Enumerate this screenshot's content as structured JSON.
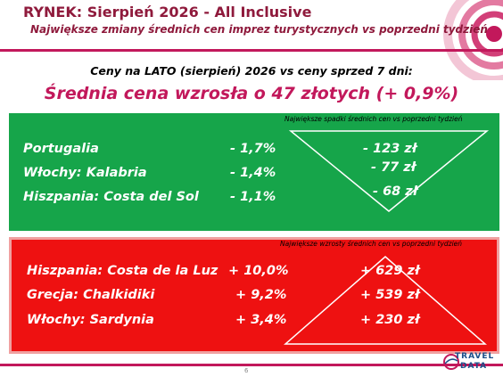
{
  "header": {
    "title": "RYNEK: Sierpień 2026 - All Inclusive",
    "subtitle": "Największe zmiany średnich cen imprez turystycznych vs poprzedni tydzień"
  },
  "intro": "Ceny na LATO (sierpień) 2026 vs ceny sprzed 7 dni:",
  "headline": "Średnia cena wzrosła o 47 złotych (+ 0,9%)",
  "decreases": {
    "note": "Największe spadki średnich cen vs poprzedni tydzień",
    "rows": [
      {
        "label": "Portugalia",
        "pct": "- 1,7%",
        "amount": "- 123 zł"
      },
      {
        "label": "Włochy: Kalabria",
        "pct": "- 1,4%",
        "amount": "- 77 zł"
      },
      {
        "label": "Hiszpania: Costa del Sol",
        "pct": "- 1,1%",
        "amount": "- 68 zł"
      }
    ]
  },
  "increases": {
    "note": "Największe wzrosty średnich cen vs poprzedni tydzień",
    "rows": [
      {
        "label": "Hiszpania: Costa de la Luz",
        "pct": "+ 10,0%",
        "amount": "+ 629 zł"
      },
      {
        "label": "Grecja: Chalkidiki",
        "pct": "+ 9,2%",
        "amount": "+ 539 zł"
      },
      {
        "label": "Włochy: Sardynia",
        "pct": "+ 3,4%",
        "amount": "+ 230 zł"
      }
    ]
  },
  "footer": {
    "page_number": "6",
    "logo_line1": "TRAVEL",
    "logo_line2": "DATA"
  },
  "colors": {
    "accent": "#c2185b",
    "green_panel": "#16a54a",
    "red_panel": "#ee1111"
  }
}
